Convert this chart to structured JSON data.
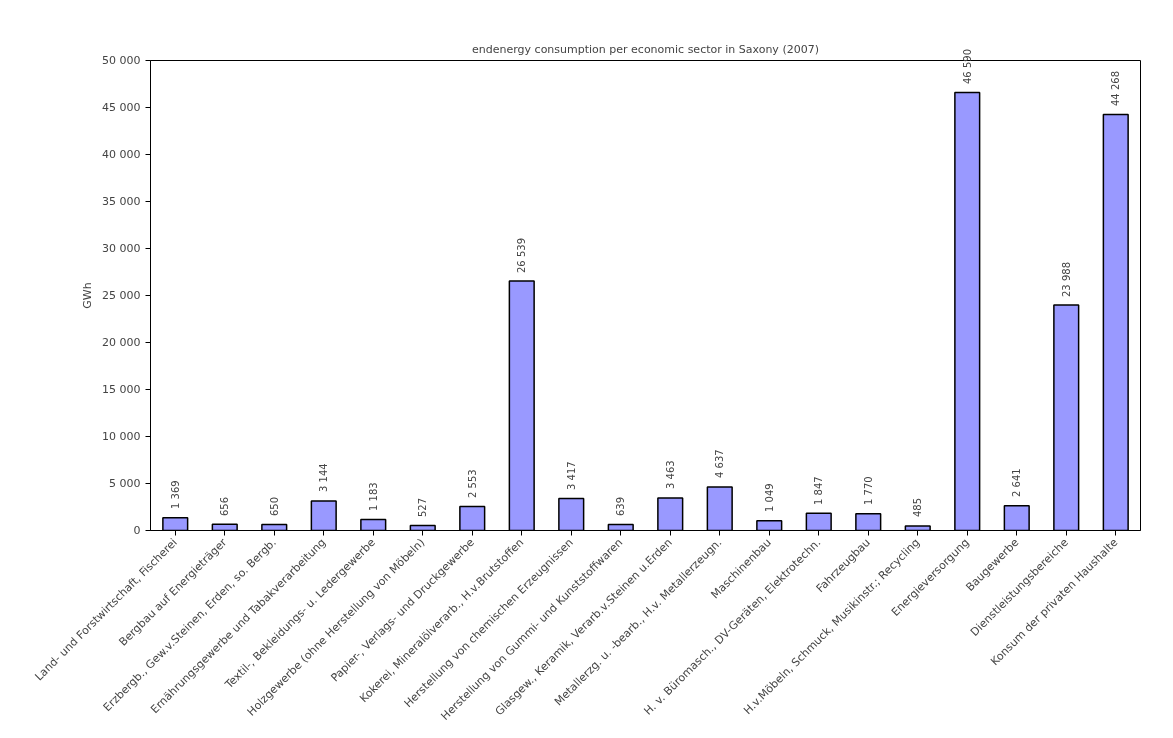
{
  "chart_data": {
    "type": "bar",
    "title": "endenergy consumption per economic sector in Saxony (2007)",
    "ylabel": "GWh",
    "categories": [
      "Land- und Forstwirtschaft, Fischerei",
      "Bergbau auf Energieträger",
      "Erzbergb., Gew.v.Steinen, Erden, so. Bergb.",
      "Ernährungsgewerbe und Tabakverarbeitung",
      "Textil-, Bekleidungs- u. Ledergewerbe",
      "Holzgewerbe (ohne Herstellung von Möbeln)",
      "Papier-, Verlags- und Druckgewerbe",
      "Kokerei, Mineralölverarb., H.v.Brutstoffen",
      "Herstellung von chemischen Erzeugnissen",
      "Herstellung von Gummi- und Kunststoffwaren",
      "Glasgew., Keramik, Verarb.v.Steinen u.Erden",
      "Metallerzg. u. -bearb., H.v. Metallerzeugn.",
      "Maschinenbau",
      "H. v. Büromasch., DV-Geräten, Elektrotechn.",
      "Fahrzeugbau",
      "H.v.Möbeln, Schmuck, Musikinstr.; Recycling",
      "Energieversorgung",
      "Baugewerbe",
      "Dienstleistungsbereiche",
      "Konsum der privaten Haushalte"
    ],
    "values": [
      1369,
      656,
      650,
      3144,
      1183,
      527,
      2553,
      26539,
      3417,
      639,
      3463,
      4637,
      1049,
      1847,
      1770,
      485,
      46590,
      2641,
      23988,
      44268
    ],
    "value_labels": [
      "1 369",
      "656",
      "650",
      "3 144",
      "1 183",
      "527",
      "2 553",
      "26 539",
      "3 417",
      "639",
      "3 463",
      "4 637",
      "1 049",
      "1 847",
      "1 770",
      "485",
      "46 590",
      "2 641",
      "23 988",
      "44 268"
    ],
    "color": "#9999ff",
    "ylim": [
      0,
      50000
    ],
    "yticks": [
      {
        "value": 0,
        "label": "0"
      },
      {
        "value": 5000,
        "label": "5 000"
      },
      {
        "value": 10000,
        "label": "10 000"
      },
      {
        "value": 15000,
        "label": "15 000"
      },
      {
        "value": 20000,
        "label": "20 000"
      },
      {
        "value": 25000,
        "label": "25 000"
      },
      {
        "value": 30000,
        "label": "30 000"
      },
      {
        "value": 35000,
        "label": "35 000"
      },
      {
        "value": 40000,
        "label": "40 000"
      },
      {
        "value": 45000,
        "label": "45 000"
      },
      {
        "value": 50000,
        "label": "50 000"
      }
    ],
    "grid": false
  }
}
